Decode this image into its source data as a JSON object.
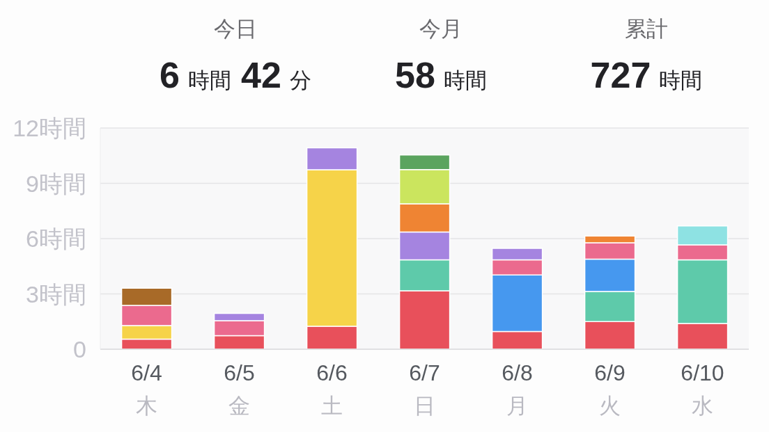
{
  "chart_data": {
    "type": "bar",
    "stacked": true,
    "annotations": [
      "今日",
      "6 時間 42 分",
      "今月",
      "58 時間",
      "累計",
      "727 時間"
    ],
    "categories": [
      "6/4\n木",
      "6/5\n金",
      "6/6\n土",
      "6/7\n日",
      "6/8\n月",
      "6/9\n火",
      "6/10\n水"
    ],
    "ylim": [
      0,
      12
    ],
    "yticks": [
      0,
      {
        "value": 3,
        "label": "3時間"
      },
      {
        "value": 6,
        "label": "6時間"
      },
      {
        "value": 9,
        "label": "9時間"
      },
      {
        "value": 12,
        "label": "12時間"
      }
    ],
    "grid": "y",
    "series": [
      {
        "color": "#e8505b",
        "values": [
          0.55,
          0.74,
          1.25,
          3.17,
          0.96,
          1.5,
          1.4
        ]
      },
      {
        "color": "#5ecaaa",
        "values": [
          null,
          null,
          null,
          1.68,
          null,
          1.63,
          3.45
        ]
      },
      {
        "color": "#4698ef",
        "values": [
          null,
          null,
          null,
          null,
          3.07,
          1.76,
          null
        ]
      },
      {
        "color": "#f6d349",
        "values": [
          0.73,
          null,
          8.49,
          null,
          null,
          null,
          null
        ]
      },
      {
        "color": "#eb6a8e",
        "values": [
          1.1,
          0.81,
          null,
          null,
          0.82,
          0.88,
          0.81
        ]
      },
      {
        "color": "#a584e0",
        "values": [
          null,
          0.39,
          1.18,
          1.51,
          0.62,
          null,
          null
        ]
      },
      {
        "color": "#ef8433",
        "values": [
          null,
          null,
          null,
          1.53,
          null,
          0.37,
          null
        ]
      },
      {
        "color": "#cbe55e",
        "values": [
          null,
          null,
          null,
          1.86,
          null,
          null,
          null
        ]
      },
      {
        "color": "#5ba45f",
        "values": [
          null,
          null,
          null,
          0.79,
          null,
          null,
          null
        ]
      },
      {
        "color": "#a86a28",
        "values": [
          0.93,
          null,
          null,
          null,
          null,
          null,
          null
        ]
      },
      {
        "color": "#8ee2e3",
        "values": [
          null,
          null,
          null,
          null,
          null,
          null,
          1.03
        ]
      }
    ]
  }
}
